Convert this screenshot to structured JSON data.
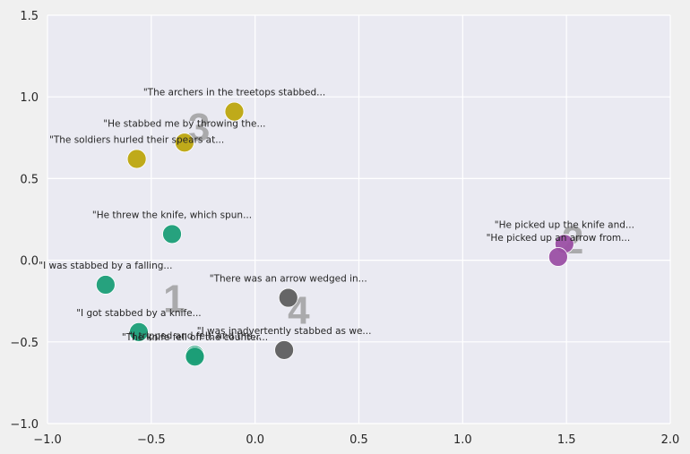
{
  "chart_data": {
    "type": "scatter",
    "xlim": [
      -1.0,
      2.0
    ],
    "ylim": [
      -1.0,
      1.5
    ],
    "x_ticks": [
      -1.0,
      -0.5,
      0.0,
      0.5,
      1.0,
      1.5,
      2.0
    ],
    "y_ticks": [
      -1.0,
      -0.5,
      0.0,
      0.5,
      1.0,
      1.5
    ],
    "x_tick_labels": [
      "−1.0",
      "−0.5",
      "0.0",
      "0.5",
      "1.0",
      "1.5",
      "2.0"
    ],
    "y_tick_labels": [
      "−1.0",
      "−0.5",
      "0.0",
      "0.5",
      "1.0",
      "1.5"
    ],
    "grid": true,
    "background": "#eaeaf2",
    "series": [
      {
        "color": "#1b9e77",
        "points": [
          {
            "x": -0.4,
            "y": 0.16,
            "label": "\"He threw the knife, which spun..."
          },
          {
            "x": -0.72,
            "y": -0.15,
            "label": "\"I was stabbed by a falling..."
          },
          {
            "x": -0.56,
            "y": -0.44,
            "label": "\"I got stabbed by a knife..."
          },
          {
            "x": -0.29,
            "y": -0.58,
            "label": "\"I tripped and fell, and the..."
          },
          {
            "x": -0.29,
            "y": -0.59,
            "label": "\"The knife fell off the counter..."
          }
        ]
      },
      {
        "color": "#9b50a4",
        "points": [
          {
            "x": 1.49,
            "y": 0.1,
            "label": "\"He picked up the knife and..."
          },
          {
            "x": 1.46,
            "y": 0.02,
            "label": "\"He picked up an arrow from..."
          }
        ]
      },
      {
        "color": "#bda60e",
        "points": [
          {
            "x": -0.1,
            "y": 0.91,
            "label": "\"The archers in the treetops stabbed..."
          },
          {
            "x": -0.34,
            "y": 0.72,
            "label": "\"He stabbed me by throwing the..."
          },
          {
            "x": -0.57,
            "y": 0.62,
            "label": "\"The soldiers hurled their spears at..."
          }
        ]
      },
      {
        "color": "#5e5e5e",
        "points": [
          {
            "x": 0.16,
            "y": -0.23,
            "label": "\"There was an arrow wedged in..."
          },
          {
            "x": 0.14,
            "y": -0.55,
            "label": "\"I was inadvertently stabbed as we..."
          }
        ]
      }
    ],
    "cluster_labels": [
      {
        "text": "1",
        "x": -0.39,
        "y": -0.23
      },
      {
        "text": "2",
        "x": 1.53,
        "y": 0.13
      },
      {
        "text": "3",
        "x": -0.27,
        "y": 0.82
      },
      {
        "text": "4",
        "x": 0.21,
        "y": -0.3
      }
    ]
  }
}
